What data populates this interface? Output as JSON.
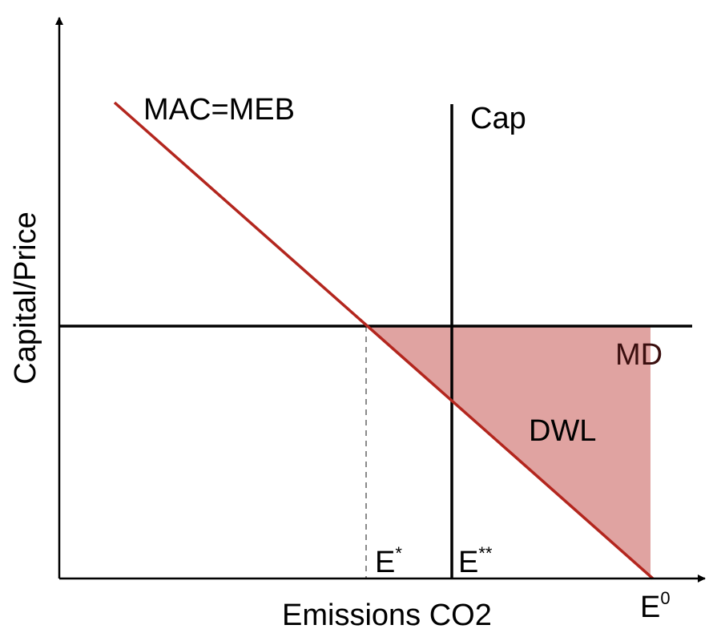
{
  "diagram": {
    "axis_labels": {
      "x": "Emissions CO2",
      "y": "Capital/Price"
    },
    "curves": {
      "mac_meb": "MAC=MEB",
      "cap": "Cap",
      "md": "MD"
    },
    "region": {
      "dwl": "DWL"
    },
    "points": {
      "e_star": {
        "base": "E",
        "mark": "*"
      },
      "e_star_star": {
        "base": "E",
        "mark": "**"
      },
      "e_zero": {
        "base": "E",
        "mark": "0"
      }
    },
    "colors": {
      "mac_line": "#b3261e",
      "dwl_fill": "#e0a3a1",
      "md_text": "#3a0f0f",
      "axis": "#000000",
      "dashed": "#8a8a8a"
    }
  }
}
